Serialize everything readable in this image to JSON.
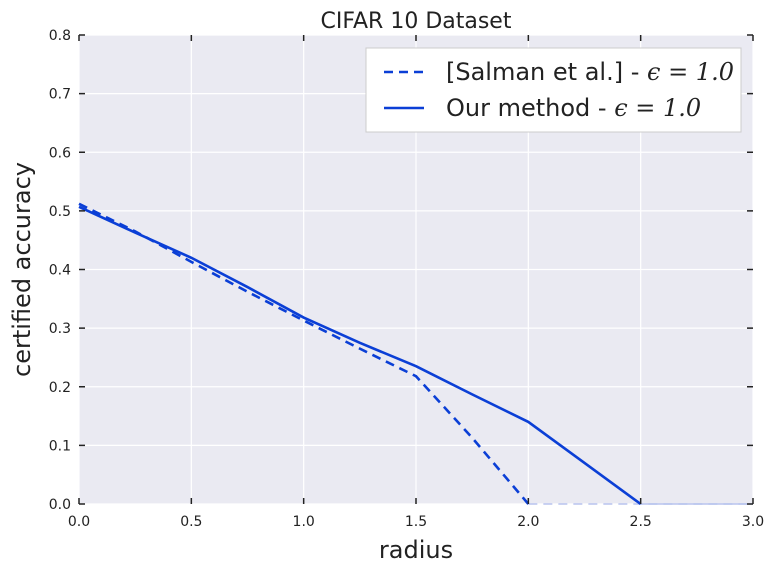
{
  "chart_data": {
    "type": "line",
    "title": "CIFAR 10 Dataset",
    "xlabel": "radius",
    "ylabel": "certified accuracy",
    "xlim": [
      0.0,
      3.0
    ],
    "ylim": [
      0.0,
      0.8
    ],
    "xticks": [
      "0.0",
      "0.5",
      "1.0",
      "1.5",
      "2.0",
      "2.5",
      "3.0"
    ],
    "yticks": [
      "0.0",
      "0.1",
      "0.2",
      "0.3",
      "0.4",
      "0.5",
      "0.6",
      "0.7",
      "0.8"
    ],
    "grid": true,
    "legend_position": "top-right",
    "series": [
      {
        "name": "[Salman et al.] - ",
        "name_math": "ϵ = 1.0",
        "style": "dashed",
        "color": "#0b3fd6",
        "x": [
          0.0,
          0.25,
          0.5,
          0.75,
          1.0,
          1.25,
          1.5,
          1.75,
          2.0,
          2.25,
          2.5,
          2.75,
          3.0
        ],
        "y": [
          0.512,
          0.465,
          0.413,
          0.362,
          0.313,
          0.265,
          0.218,
          0.113,
          0.0,
          0.0,
          0.0,
          0.0,
          0.0
        ]
      },
      {
        "name": "Our method - ",
        "name_math": "ϵ = 1.0",
        "style": "solid",
        "color": "#0b3fd6",
        "x": [
          0.0,
          0.25,
          0.5,
          0.75,
          1.0,
          1.25,
          1.5,
          1.75,
          2.0,
          2.25,
          2.5,
          2.75,
          3.0
        ],
        "y": [
          0.507,
          0.463,
          0.42,
          0.37,
          0.318,
          0.275,
          0.235,
          0.187,
          0.14,
          0.07,
          0.0,
          0.0,
          0.0
        ]
      }
    ]
  }
}
